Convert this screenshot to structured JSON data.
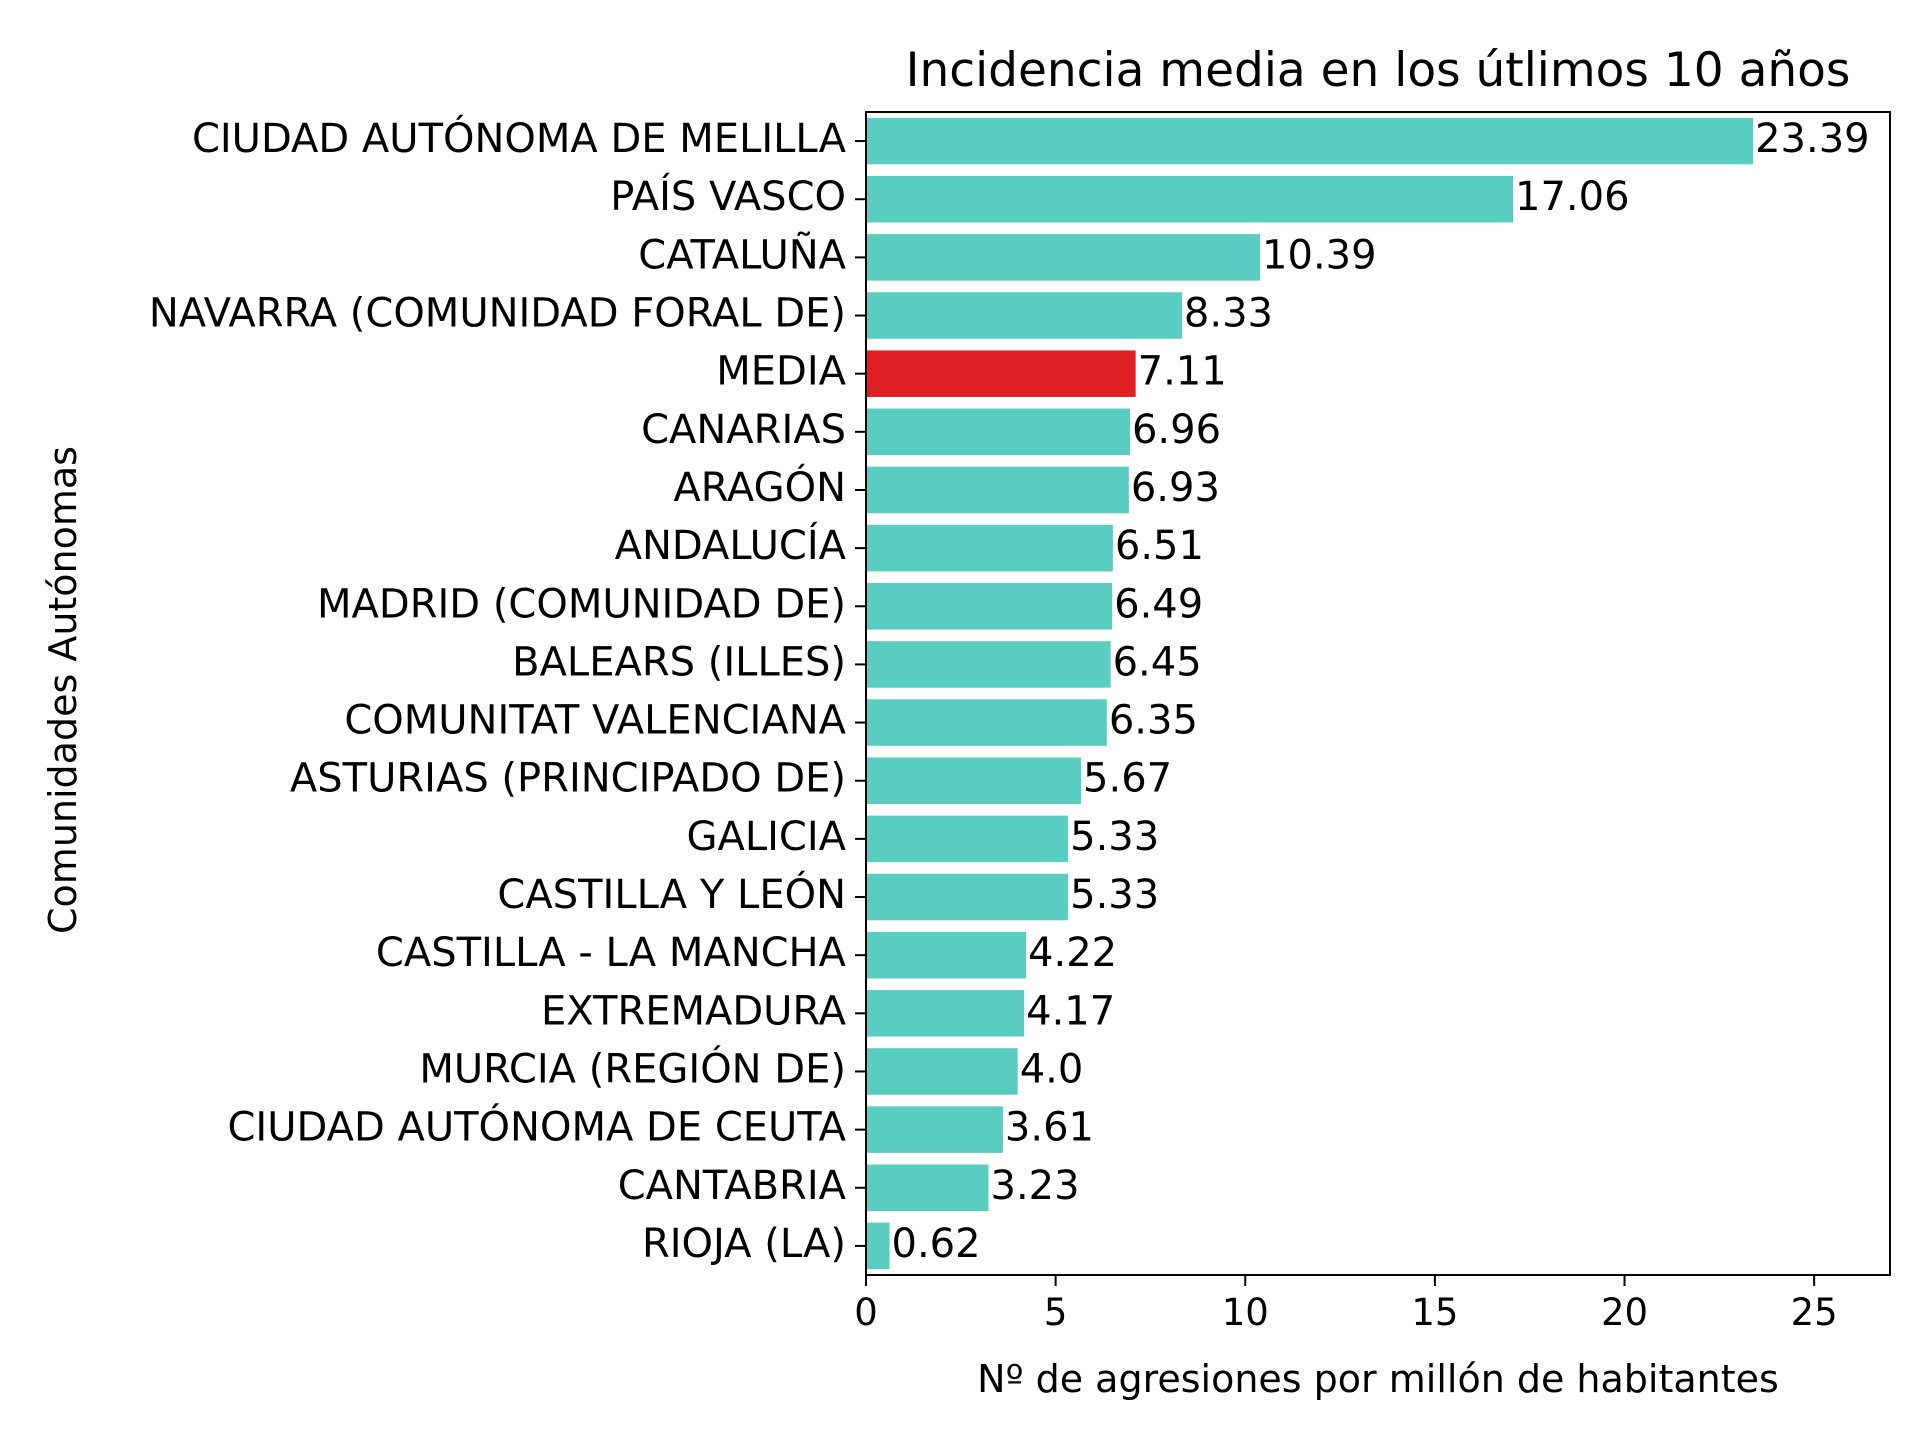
{
  "chart_data": {
    "type": "bar",
    "orientation": "horizontal",
    "title": "Incidencia media en los útlimos 10 años",
    "xlabel": "Nº de agresiones por millón de habitantes",
    "ylabel": "Comunidades Autónomas",
    "xlim": [
      0,
      27
    ],
    "xticks": [
      0,
      5,
      10,
      15,
      20,
      25
    ],
    "grid": false,
    "colors": {
      "bar": "#59cdbf",
      "highlight": "#e01f22",
      "axis": "#000000"
    },
    "categories": [
      "CIUDAD AUTÓNOMA DE MELILLA",
      "PAÍS VASCO",
      "CATALUÑA",
      "NAVARRA (COMUNIDAD FORAL DE)",
      "MEDIA",
      "CANARIAS",
      "ARAGÓN",
      "ANDALUCÍA",
      "MADRID (COMUNIDAD DE)",
      "BALEARS (ILLES)",
      "COMUNITAT VALENCIANA",
      "ASTURIAS (PRINCIPADO DE)",
      "GALICIA",
      "CASTILLA Y LEÓN",
      "CASTILLA - LA MANCHA",
      "EXTREMADURA",
      "MURCIA (REGIÓN DE)",
      "CIUDAD AUTÓNOMA DE CEUTA",
      "CANTABRIA",
      "RIOJA (LA)"
    ],
    "values": [
      23.39,
      17.06,
      10.39,
      8.33,
      7.11,
      6.96,
      6.93,
      6.51,
      6.49,
      6.45,
      6.35,
      5.67,
      5.33,
      5.33,
      4.22,
      4.17,
      4.0,
      3.61,
      3.23,
      0.62
    ],
    "value_labels": [
      "23.39",
      "17.06",
      "10.39",
      "8.33",
      "7.11",
      "6.96",
      "6.93",
      "6.51",
      "6.49",
      "6.45",
      "6.35",
      "5.67",
      "5.33",
      "5.33",
      "4.22",
      "4.17",
      "4.0",
      "3.61",
      "3.23",
      "0.62"
    ],
    "highlight_category": "MEDIA"
  }
}
